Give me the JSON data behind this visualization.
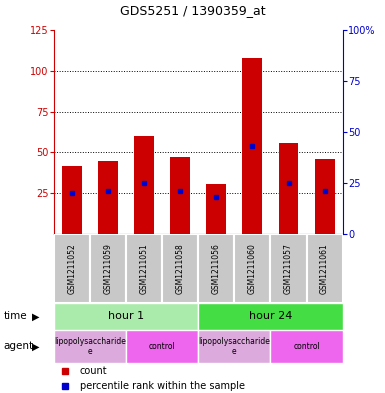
{
  "title": "GDS5251 / 1390359_at",
  "samples": [
    "GSM1211052",
    "GSM1211059",
    "GSM1211051",
    "GSM1211058",
    "GSM1211056",
    "GSM1211060",
    "GSM1211057",
    "GSM1211061"
  ],
  "counts": [
    42,
    45,
    60,
    47,
    31,
    108,
    56,
    46
  ],
  "percentiles": [
    20,
    21,
    25,
    21,
    18,
    43,
    25,
    21
  ],
  "ylim_left": [
    0,
    125
  ],
  "yticks_left": [
    25,
    50,
    75,
    100,
    125
  ],
  "yticks_right": [
    0,
    25,
    50,
    75,
    100
  ],
  "ytick_labels_right": [
    "0",
    "25",
    "50",
    "75",
    "100%"
  ],
  "bar_color": "#cc0000",
  "dot_color": "#0000cc",
  "time_groups": [
    {
      "label": "hour 1",
      "start": 0,
      "end": 4,
      "color": "#aaeaaa"
    },
    {
      "label": "hour 24",
      "start": 4,
      "end": 8,
      "color": "#44dd44"
    }
  ],
  "agent_groups": [
    {
      "label": "lipopolysaccharide\ne",
      "start": 0,
      "end": 2,
      "color": "#ddaadd"
    },
    {
      "label": "control",
      "start": 2,
      "end": 4,
      "color": "#ee66ee"
    },
    {
      "label": "lipopolysaccharide\ne",
      "start": 4,
      "end": 6,
      "color": "#ddaadd"
    },
    {
      "label": "control",
      "start": 6,
      "end": 8,
      "color": "#ee66ee"
    }
  ],
  "bg_color": "#ffffff",
  "left_axis_color": "#cc0000",
  "right_axis_color": "#0000cc",
  "cell_color": "#c8c8c8",
  "cell_border": "#ffffff"
}
